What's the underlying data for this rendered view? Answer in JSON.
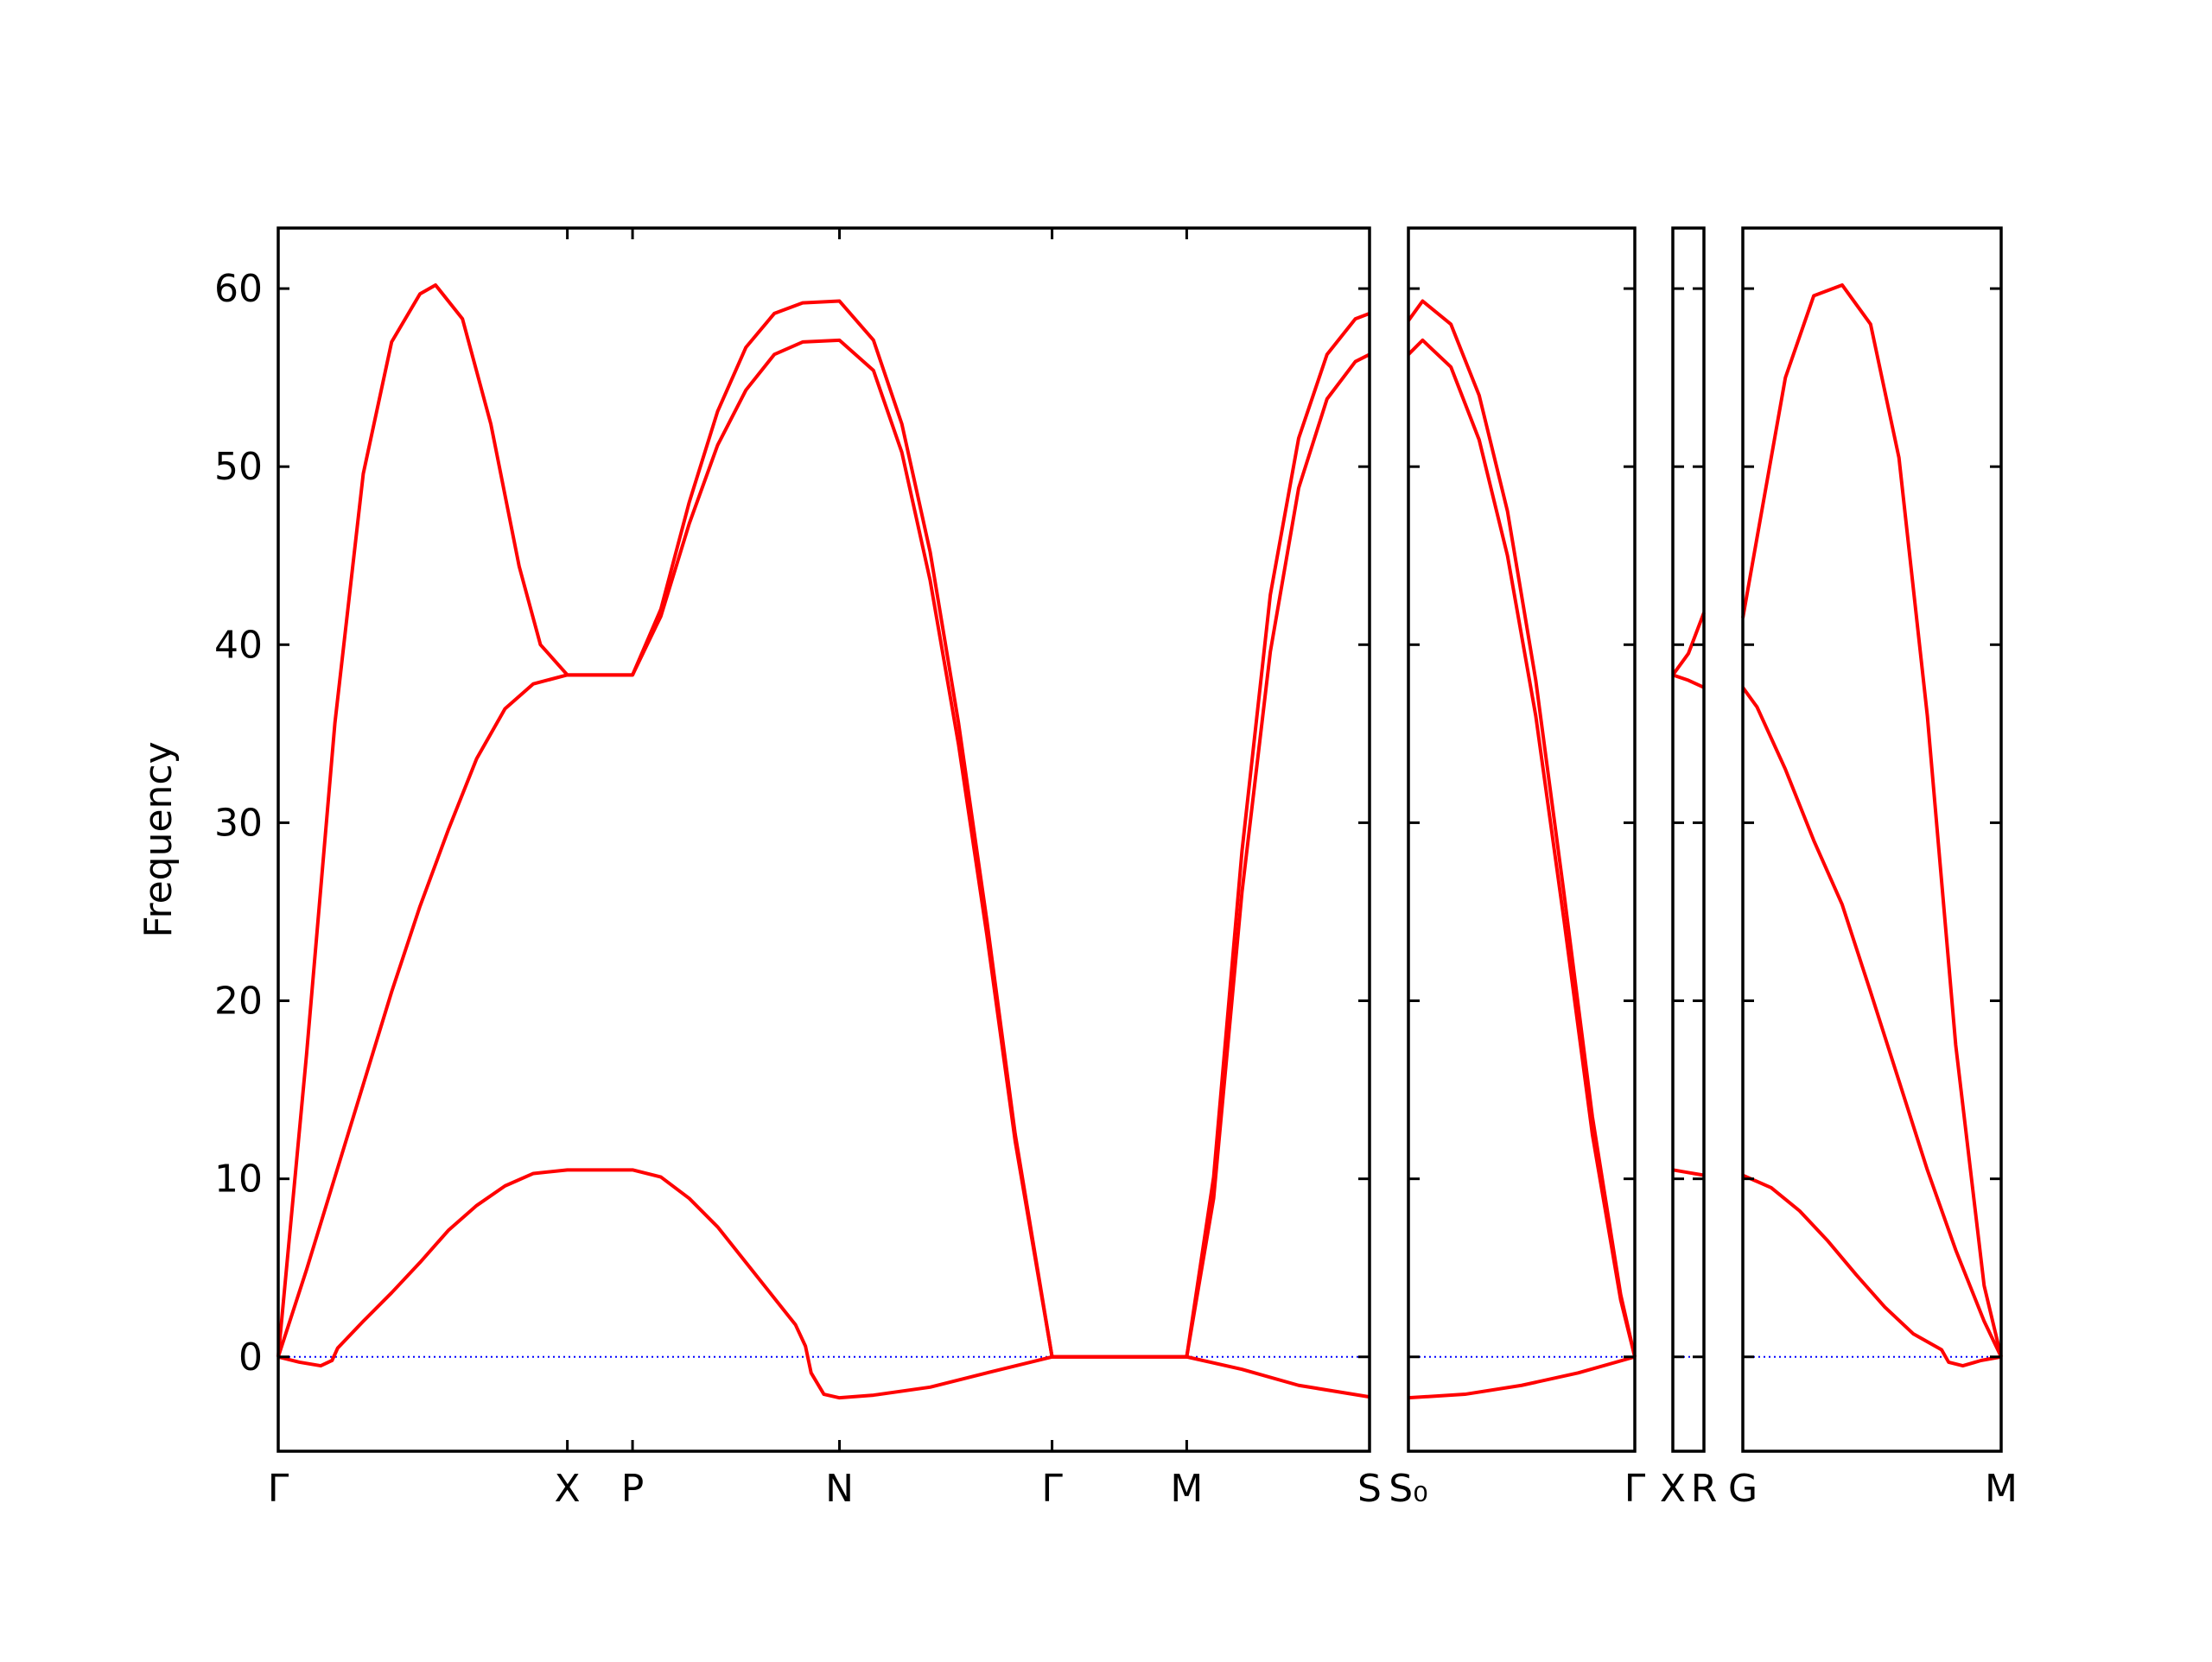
{
  "chart_data": [
    {
      "type": "line",
      "ylabel": "Frequency",
      "show_ytick_labels": true,
      "xlim": [
        0,
        7.7
      ],
      "ylim": [
        -5.3,
        63.4
      ],
      "xticks": [
        {
          "value": 0,
          "label": "Γ"
        },
        {
          "value": 2.04,
          "label": "X"
        },
        {
          "value": 2.5,
          "label": "P"
        },
        {
          "value": 3.96,
          "label": "N"
        },
        {
          "value": 5.46,
          "label": "Γ"
        },
        {
          "value": 6.41,
          "label": "M"
        },
        {
          "value": 7.7,
          "label": "S"
        }
      ],
      "yticks": [
        0,
        10,
        20,
        30,
        40,
        50,
        60
      ],
      "hline": {
        "value": 0,
        "color": "#0000ff"
      },
      "series": [
        {
          "color": "#ff0000",
          "x": [
            0,
            0.2,
            0.4,
            0.6,
            0.8,
            1.0,
            1.11,
            1.3,
            1.5,
            1.7,
            1.85,
            2.04,
            2.5,
            2.7,
            2.9,
            3.1,
            3.3,
            3.5,
            3.7,
            3.96,
            4.2,
            4.4,
            4.6,
            4.8,
            5.0,
            5.2,
            5.46,
            6.41,
            6.6,
            6.8,
            7.0,
            7.2,
            7.4,
            7.6,
            7.7
          ],
          "values": [
            0,
            17,
            35.6,
            49.6,
            57,
            59.7,
            60.2,
            58.3,
            52.4,
            44.4,
            40,
            38.3,
            38.3,
            42,
            48,
            53.1,
            56.7,
            58.6,
            59.2,
            59.3,
            57.1,
            52.4,
            45.2,
            35.6,
            24.5,
            12.5,
            0,
            0,
            10.1,
            28.4,
            42.8,
            51.6,
            56.3,
            58.3,
            58.6
          ]
        },
        {
          "color": "#ff0000",
          "x": [
            0,
            0.2,
            0.4,
            0.6,
            0.8,
            1.0,
            1.2,
            1.4,
            1.6,
            1.8,
            2.04,
            2.5,
            2.7,
            2.9,
            3.1,
            3.3,
            3.5,
            3.7,
            3.96,
            4.2,
            4.4,
            4.6,
            4.8,
            5.0,
            5.2,
            5.46,
            6.41,
            6.6,
            6.8,
            7.0,
            7.2,
            7.4,
            7.6,
            7.7
          ],
          "values": [
            0,
            4.9,
            10.1,
            15.3,
            20.5,
            25.3,
            29.6,
            33.6,
            36.4,
            37.8,
            38.3,
            38.3,
            41.6,
            46.8,
            51.2,
            54.3,
            56.3,
            57.0,
            57.1,
            55.4,
            50.8,
            43.6,
            34.4,
            23.7,
            12.1,
            0,
            0,
            8.9,
            26.1,
            39.6,
            48.8,
            53.8,
            55.9,
            56.3
          ]
        },
        {
          "color": "#ff0000",
          "x": [
            0,
            0.15,
            0.3,
            0.38,
            0.42,
            0.6,
            0.8,
            1.0,
            1.2,
            1.4,
            1.6,
            1.8,
            2.04,
            2.5,
            2.7,
            2.9,
            3.1,
            3.3,
            3.5,
            3.65,
            3.72,
            3.76,
            3.85,
            3.96,
            4.2,
            4.6,
            5.0,
            5.46,
            6.41,
            6.8,
            7.2,
            7.7
          ],
          "values": [
            0,
            -0.3,
            -0.5,
            -0.2,
            0.5,
            2.0,
            3.6,
            5.3,
            7.1,
            8.5,
            9.6,
            10.3,
            10.5,
            10.5,
            10.1,
            8.9,
            7.3,
            5.3,
            3.3,
            1.8,
            0.6,
            -0.9,
            -2.1,
            -2.3,
            -2.15,
            -1.7,
            -0.9,
            0,
            0,
            -0.7,
            -1.6,
            -2.25
          ]
        }
      ]
    },
    {
      "type": "line",
      "show_ytick_labels": false,
      "xlim": [
        0,
        1.6
      ],
      "ylim": [
        -5.3,
        63.4
      ],
      "xticks": [
        {
          "value": 0,
          "label": "S₀"
        },
        {
          "value": 1.6,
          "label": "Γ"
        }
      ],
      "yticks": [
        0,
        10,
        20,
        30,
        40,
        50,
        60
      ],
      "hline": {
        "value": 0,
        "color": "#0000ff"
      },
      "series": [
        {
          "color": "#ff0000",
          "x": [
            0,
            0.1,
            0.3,
            0.5,
            0.7,
            0.9,
            1.1,
            1.3,
            1.5,
            1.6
          ],
          "values": [
            58.2,
            59.3,
            58,
            54,
            47.5,
            38,
            26,
            13.5,
            3.5,
            0
          ]
        },
        {
          "color": "#ff0000",
          "x": [
            0,
            0.1,
            0.3,
            0.5,
            0.7,
            0.9,
            1.1,
            1.3,
            1.5,
            1.6
          ],
          "values": [
            56.3,
            57.1,
            55.6,
            51.5,
            45,
            36,
            24.5,
            12.5,
            3.2,
            0
          ]
        },
        {
          "color": "#ff0000",
          "x": [
            0,
            0.4,
            0.8,
            1.2,
            1.6
          ],
          "values": [
            -2.3,
            -2.1,
            -1.6,
            -0.9,
            0
          ]
        }
      ]
    },
    {
      "type": "line",
      "show_ytick_labels": false,
      "xlim": [
        0,
        0.22
      ],
      "ylim": [
        -5.3,
        63.4
      ],
      "xticks": [
        {
          "value": 0,
          "label": "X"
        },
        {
          "value": 0.22,
          "label": "R"
        }
      ],
      "yticks": [
        0,
        10,
        20,
        30,
        40,
        50,
        60
      ],
      "hline": {
        "value": 0,
        "color": "#0000ff"
      },
      "series": [
        {
          "color": "#ff0000",
          "x": [
            0,
            0.11,
            0.22
          ],
          "values": [
            38.3,
            39.5,
            41.8
          ]
        },
        {
          "color": "#ff0000",
          "x": [
            0,
            0.11,
            0.22
          ],
          "values": [
            38.3,
            38.0,
            37.6
          ]
        },
        {
          "color": "#ff0000",
          "x": [
            0,
            0.11,
            0.22
          ],
          "values": [
            10.5,
            10.35,
            10.2
          ]
        }
      ]
    },
    {
      "type": "line",
      "show_ytick_labels": false,
      "xlim": [
        0,
        1.82
      ],
      "ylim": [
        -5.3,
        63.4
      ],
      "xticks": [
        {
          "value": 0,
          "label": "G"
        },
        {
          "value": 1.82,
          "label": "M"
        }
      ],
      "yticks": [
        0,
        10,
        20,
        30,
        40,
        50,
        60
      ],
      "hline": {
        "value": 0,
        "color": "#0000ff"
      },
      "series": [
        {
          "color": "#ff0000",
          "x": [
            0,
            0.1,
            0.3,
            0.5,
            0.7,
            0.9,
            1.1,
            1.3,
            1.5,
            1.7,
            1.82
          ],
          "values": [
            41.5,
            46,
            55,
            59.6,
            60.2,
            58,
            50.5,
            36,
            17.5,
            4,
            0
          ]
        },
        {
          "color": "#ff0000",
          "x": [
            0,
            0.1,
            0.3,
            0.5,
            0.7,
            0.9,
            1.1,
            1.3,
            1.5,
            1.7,
            1.82
          ],
          "values": [
            37.6,
            36.5,
            33,
            29,
            25.4,
            20.5,
            15.5,
            10.5,
            6,
            2,
            0
          ]
        },
        {
          "color": "#ff0000",
          "x": [
            0,
            0.2,
            0.4,
            0.6,
            0.8,
            1.0,
            1.2,
            1.4,
            1.45,
            1.55,
            1.68,
            1.82
          ],
          "values": [
            10.2,
            9.5,
            8.2,
            6.5,
            4.6,
            2.8,
            1.3,
            0.4,
            -0.3,
            -0.5,
            -0.2,
            0
          ]
        }
      ]
    }
  ]
}
